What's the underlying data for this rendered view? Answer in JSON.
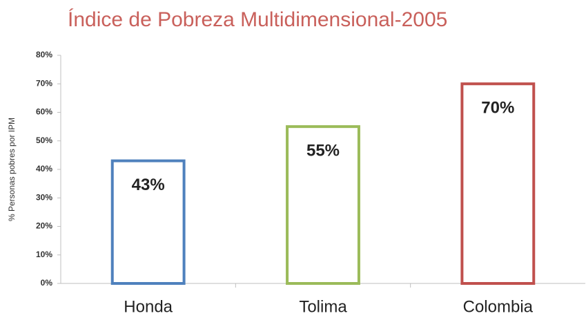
{
  "chart_data": {
    "type": "bar",
    "title": "Índice de Pobreza Multidimensional-2005",
    "y_label": "% Personas pobres por IPM",
    "categories": [
      "Honda",
      "Tolima",
      "Colombia"
    ],
    "values": [
      43,
      55,
      70
    ],
    "value_labels": [
      "43%",
      "55%",
      "70%"
    ],
    "colors": [
      "#4f81bd",
      "#9bbb59",
      "#c0504d"
    ],
    "ylim": [
      0,
      80
    ],
    "yticks": [
      {
        "value": 0,
        "label": "0%"
      },
      {
        "value": 10,
        "label": "10%"
      },
      {
        "value": 20,
        "label": "20%"
      },
      {
        "value": 30,
        "label": "30%"
      },
      {
        "value": 40,
        "label": "40%"
      },
      {
        "value": 50,
        "label": "50%"
      },
      {
        "value": 60,
        "label": "60%"
      },
      {
        "value": 70,
        "label": "70%"
      },
      {
        "value": 80,
        "label": "80%"
      }
    ],
    "grid": false
  }
}
